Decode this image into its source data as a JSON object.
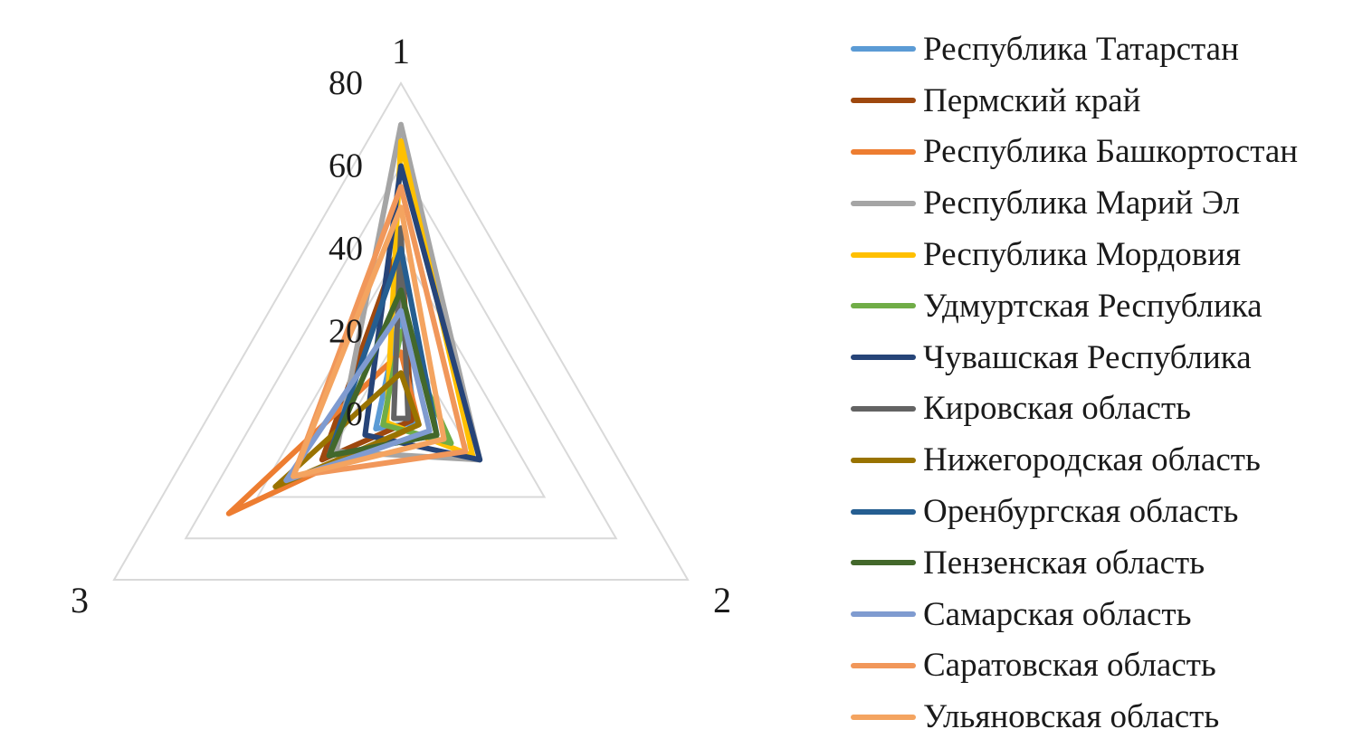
{
  "chart_data": {
    "type": "radar",
    "axes": [
      "1",
      "2",
      "3"
    ],
    "r_ticks": [
      0,
      20,
      40,
      60,
      80
    ],
    "rlim": [
      0,
      80
    ],
    "grid": true,
    "legend_position": "right",
    "series": [
      {
        "name": "Республика Татарстан",
        "color": "#5b9bd5",
        "values": [
          25,
          4,
          7
        ]
      },
      {
        "name": "Пермский край",
        "color": "#9e480e",
        "values": [
          42,
          3,
          22
        ]
      },
      {
        "name": "Республика Башкортостан",
        "color": "#ed7d31",
        "values": [
          15,
          5,
          48
        ]
      },
      {
        "name": "Республика Марий Эл",
        "color": "#a5a5a5",
        "values": [
          70,
          22,
          18
        ]
      },
      {
        "name": "Республика Мордовия",
        "color": "#ffc000",
        "values": [
          66,
          20,
          4
        ]
      },
      {
        "name": "Удмуртская Республика",
        "color": "#70ad47",
        "values": [
          20,
          14,
          5
        ]
      },
      {
        "name": "Чувашская Республика",
        "color": "#264478",
        "values": [
          60,
          22,
          10
        ]
      },
      {
        "name": "Кировская область",
        "color": "#636363",
        "values": [
          45,
          2,
          2
        ]
      },
      {
        "name": "Нижегородская область",
        "color": "#997300",
        "values": [
          10,
          5,
          35
        ]
      },
      {
        "name": "Оренбургская область",
        "color": "#255e91",
        "values": [
          40,
          10,
          20
        ]
      },
      {
        "name": "Пензенская область",
        "color": "#43682b",
        "values": [
          30,
          10,
          20
        ]
      },
      {
        "name": "Самарская область",
        "color": "#7f9bd0",
        "values": [
          25,
          8,
          32
        ]
      },
      {
        "name": "Саратовская область",
        "color": "#f1975a",
        "values": [
          55,
          18,
          30
        ]
      },
      {
        "name": "Ульяновская область",
        "color": "#f4a460",
        "values": [
          50,
          12,
          30
        ]
      }
    ]
  }
}
